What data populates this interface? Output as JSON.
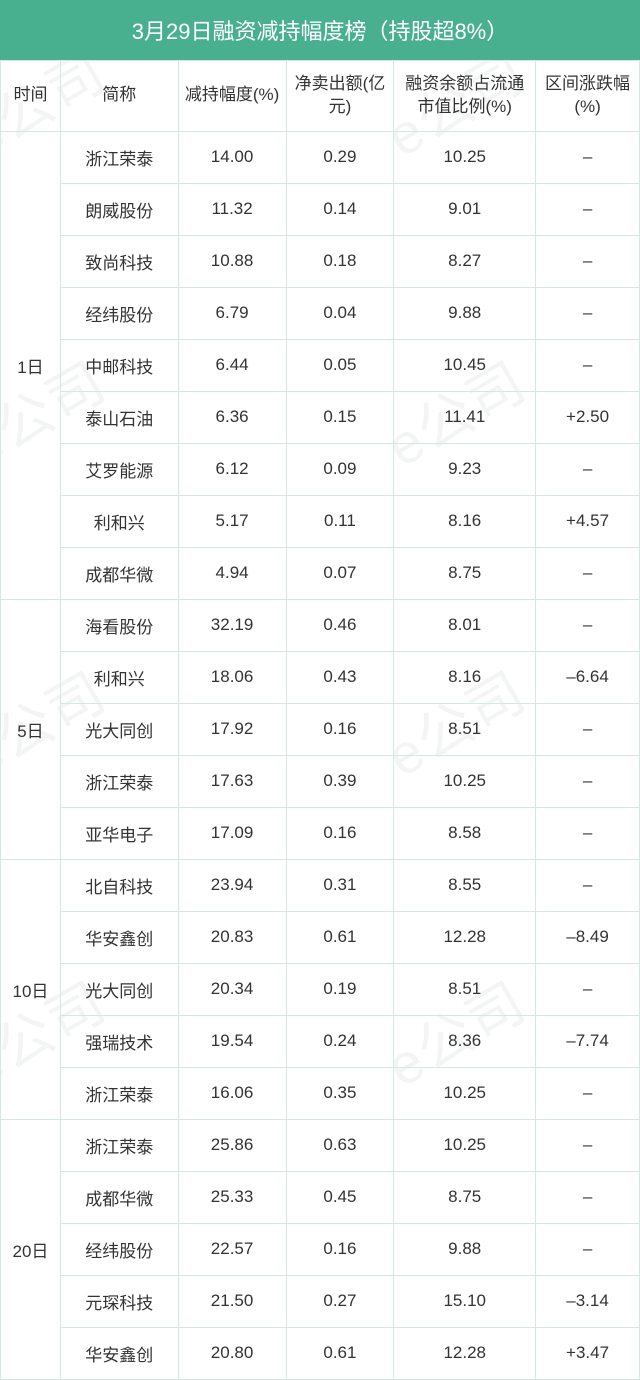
{
  "title": "3月29日融资减持幅度榜（持股超8%）",
  "watermark_text": "e公司",
  "columns": {
    "time": "时间",
    "name": "简称",
    "pct": "减持幅度(%)",
    "sell": "净卖出额(亿元)",
    "ratio": "融资余额占流通市值比例(%)",
    "chg": "区间涨跌幅(%)"
  },
  "groups": [
    {
      "time": "1日",
      "rows": [
        {
          "name": "浙江荣泰",
          "pct": "14.00",
          "sell": "0.29",
          "ratio": "10.25",
          "chg": "–"
        },
        {
          "name": "朗威股份",
          "pct": "11.32",
          "sell": "0.14",
          "ratio": "9.01",
          "chg": "–"
        },
        {
          "name": "致尚科技",
          "pct": "10.88",
          "sell": "0.18",
          "ratio": "8.27",
          "chg": "–"
        },
        {
          "name": "经纬股份",
          "pct": "6.79",
          "sell": "0.04",
          "ratio": "9.88",
          "chg": "–"
        },
        {
          "name": "中邮科技",
          "pct": "6.44",
          "sell": "0.05",
          "ratio": "10.45",
          "chg": "–"
        },
        {
          "name": "泰山石油",
          "pct": "6.36",
          "sell": "0.15",
          "ratio": "11.41",
          "chg": "+2.50"
        },
        {
          "name": "艾罗能源",
          "pct": "6.12",
          "sell": "0.09",
          "ratio": "9.23",
          "chg": "–"
        },
        {
          "name": "利和兴",
          "pct": "5.17",
          "sell": "0.11",
          "ratio": "8.16",
          "chg": "+4.57"
        },
        {
          "name": "成都华微",
          "pct": "4.94",
          "sell": "0.07",
          "ratio": "8.75",
          "chg": "–"
        }
      ]
    },
    {
      "time": "5日",
      "rows": [
        {
          "name": "海看股份",
          "pct": "32.19",
          "sell": "0.46",
          "ratio": "8.01",
          "chg": "–"
        },
        {
          "name": "利和兴",
          "pct": "18.06",
          "sell": "0.43",
          "ratio": "8.16",
          "chg": "–6.64"
        },
        {
          "name": "光大同创",
          "pct": "17.92",
          "sell": "0.16",
          "ratio": "8.51",
          "chg": "–"
        },
        {
          "name": "浙江荣泰",
          "pct": "17.63",
          "sell": "0.39",
          "ratio": "10.25",
          "chg": "–"
        },
        {
          "name": "亚华电子",
          "pct": "17.09",
          "sell": "0.16",
          "ratio": "8.58",
          "chg": "–"
        }
      ]
    },
    {
      "time": "10日",
      "rows": [
        {
          "name": "北自科技",
          "pct": "23.94",
          "sell": "0.31",
          "ratio": "8.55",
          "chg": "–"
        },
        {
          "name": "华安鑫创",
          "pct": "20.83",
          "sell": "0.61",
          "ratio": "12.28",
          "chg": "–8.49"
        },
        {
          "name": "光大同创",
          "pct": "20.34",
          "sell": "0.19",
          "ratio": "8.51",
          "chg": "–"
        },
        {
          "name": "强瑞技术",
          "pct": "19.54",
          "sell": "0.24",
          "ratio": "8.36",
          "chg": "–7.74"
        },
        {
          "name": "浙江荣泰",
          "pct": "16.06",
          "sell": "0.35",
          "ratio": "10.25",
          "chg": "–"
        }
      ]
    },
    {
      "time": "20日",
      "rows": [
        {
          "name": "浙江荣泰",
          "pct": "25.86",
          "sell": "0.63",
          "ratio": "10.25",
          "chg": "–"
        },
        {
          "name": "成都华微",
          "pct": "25.33",
          "sell": "0.45",
          "ratio": "8.75",
          "chg": "–"
        },
        {
          "name": "经纬股份",
          "pct": "22.57",
          "sell": "0.16",
          "ratio": "9.88",
          "chg": "–"
        },
        {
          "name": "元琛科技",
          "pct": "21.50",
          "sell": "0.27",
          "ratio": "15.10",
          "chg": "–3.14"
        },
        {
          "name": "华安鑫创",
          "pct": "20.80",
          "sell": "0.61",
          "ratio": "12.28",
          "chg": "+3.47"
        }
      ]
    }
  ],
  "styles": {
    "header_bg": "#49b08f",
    "header_text_color": "#ffffff",
    "border_color": "#d5e8e1",
    "cell_text_color": "#333333",
    "title_fontsize": 22,
    "cell_fontsize": 17,
    "watermark_color": "rgba(200,215,210,0.24)"
  }
}
